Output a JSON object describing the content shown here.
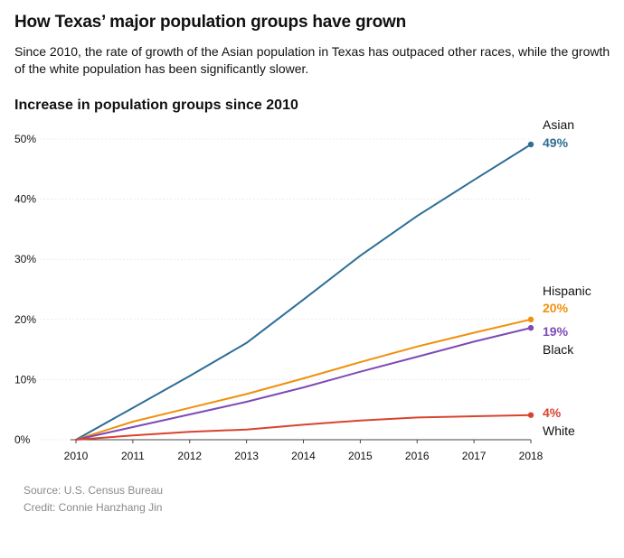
{
  "header": {
    "title": "How Texas’ major population groups have grown",
    "subtitle": "Since 2010, the rate of growth of the Asian population in Texas has outpaced other races, while the growth of the white population has been significantly slower."
  },
  "chart_data": {
    "type": "line",
    "title": "Increase in population groups since 2010",
    "xlabel": "",
    "ylabel": "",
    "x": [
      2010,
      2011,
      2012,
      2013,
      2014,
      2015,
      2016,
      2017,
      2018
    ],
    "ylim": [
      0,
      50
    ],
    "yticks": [
      0,
      10,
      20,
      30,
      40,
      50
    ],
    "ytick_labels": [
      "0%",
      "10%",
      "20%",
      "30%",
      "40%",
      "50%"
    ],
    "grid": true,
    "legend": "none",
    "series": [
      {
        "name": "Asian",
        "color": "#2e6e95",
        "end_label": "49%",
        "values": [
          0,
          5.3,
          10.6,
          16.1,
          23.3,
          30.6,
          37.2,
          43.2,
          49.1
        ]
      },
      {
        "name": "Hispanic",
        "color": "#f0900c",
        "end_label": "20%",
        "values": [
          0,
          3.0,
          5.3,
          7.6,
          10.2,
          12.9,
          15.5,
          17.8,
          20.0
        ]
      },
      {
        "name": "Black",
        "color": "#7d4bb5",
        "end_label": "19%",
        "values": [
          0,
          2.1,
          4.2,
          6.3,
          8.7,
          11.3,
          13.8,
          16.3,
          18.6
        ]
      },
      {
        "name": "White",
        "color": "#d9432e",
        "end_label": "4%",
        "values": [
          0,
          0.7,
          1.3,
          1.7,
          2.5,
          3.2,
          3.7,
          3.9,
          4.1
        ]
      }
    ]
  },
  "footer": {
    "source": "Source: U.S. Census Bureau",
    "credit": "Credit: Connie Hanzhang Jin"
  }
}
